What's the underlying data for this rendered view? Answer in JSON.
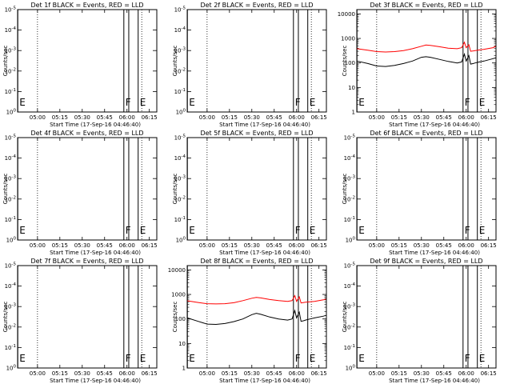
{
  "chart_data": [
    {
      "type": "line",
      "title": "Det 1f BLACK = Events, RED = LLD",
      "ylabel": "Counts/sec",
      "xlabel": "Start Time (17-Sep-16 04:46:40)",
      "x_ticks": [
        "05:00",
        "05:15",
        "05:30",
        "05:45",
        "06:00",
        "06:15"
      ],
      "y_ticks": [
        "10^0",
        "10^-1",
        "10^-2",
        "10^-3",
        "10^-4",
        "10^-5"
      ],
      "y_log": false,
      "markers": [
        "E",
        "F",
        "E"
      ],
      "series": []
    },
    {
      "type": "line",
      "title": "Det 2f BLACK = Events, RED = LLD",
      "ylabel": "Counts/sec",
      "xlabel": "Start Time (17-Sep-16 04:46:40)",
      "x_ticks": [
        "05:00",
        "05:15",
        "05:30",
        "05:45",
        "06:00",
        "06:15"
      ],
      "y_ticks": [
        "10^0",
        "10^-1",
        "10^-2",
        "10^-3",
        "10^-4",
        "10^-5"
      ],
      "y_log": false,
      "markers": [
        "E",
        "F",
        "E"
      ],
      "series": []
    },
    {
      "type": "line",
      "title": "Det 3f BLACK = Events, RED = LLD",
      "ylabel": "Counts/sec",
      "xlabel": "Start Time (17-Sep-16 04:46:40)",
      "x_ticks": [
        "05:00",
        "05:15",
        "05:30",
        "05:45",
        "06:00",
        "06:15"
      ],
      "y_ticks": [
        "1",
        "10",
        "100",
        "1000",
        "10000"
      ],
      "y_log": true,
      "ylim": [
        1,
        15000
      ],
      "markers": [
        "E",
        "F",
        "E"
      ],
      "series": [
        {
          "color": "#ff0000",
          "x": [
            4.78,
            4.9,
            5.0,
            5.1,
            5.2,
            5.3,
            5.4,
            5.5,
            5.55,
            5.6,
            5.7,
            5.8,
            5.9,
            5.95,
            5.98,
            6.0,
            6.03,
            6.05,
            6.08,
            6.1,
            6.15,
            6.2,
            6.3,
            6.33
          ],
          "y": [
            380,
            330,
            290,
            280,
            290,
            320,
            380,
            480,
            540,
            520,
            460,
            400,
            380,
            420,
            700,
            420,
            550,
            300,
            310,
            320,
            340,
            360,
            420,
            480
          ]
        },
        {
          "color": "#000000",
          "x": [
            4.78,
            4.9,
            5.0,
            5.1,
            5.2,
            5.3,
            5.4,
            5.5,
            5.55,
            5.6,
            5.7,
            5.8,
            5.9,
            5.95,
            5.98,
            6.0,
            6.03,
            6.05,
            6.08,
            6.1,
            6.15,
            6.2,
            6.3,
            6.33
          ],
          "y": [
            120,
            95,
            75,
            72,
            80,
            95,
            120,
            170,
            180,
            170,
            140,
            115,
            100,
            110,
            230,
            120,
            200,
            90,
            95,
            100,
            110,
            120,
            150,
            160
          ]
        }
      ]
    },
    {
      "type": "line",
      "title": "Det 4f BLACK = Events, RED = LLD",
      "ylabel": "Counts/sec",
      "xlabel": "Start Time (17-Sep-16 04:46:40)",
      "x_ticks": [
        "05:00",
        "05:15",
        "05:30",
        "05:45",
        "06:00",
        "06:15"
      ],
      "y_ticks": [
        "10^0",
        "10^-1",
        "10^-2",
        "10^-3",
        "10^-4",
        "10^-5"
      ],
      "y_log": false,
      "markers": [
        "E",
        "F",
        "E"
      ],
      "series": []
    },
    {
      "type": "line",
      "title": "Det 5f BLACK = Events, RED = LLD",
      "ylabel": "Counts/sec",
      "xlabel": "Start Time (17-Sep-16 04:46:40)",
      "x_ticks": [
        "05:00",
        "05:15",
        "05:30",
        "05:45",
        "06:00",
        "06:15"
      ],
      "y_ticks": [
        "10^0",
        "10^-1",
        "10^-2",
        "10^-3",
        "10^-4",
        "10^-5"
      ],
      "y_log": false,
      "markers": [
        "E",
        "F",
        "E"
      ],
      "series": []
    },
    {
      "type": "line",
      "title": "Det 6f BLACK = Events, RED = LLD",
      "ylabel": "Counts/sec",
      "xlabel": "Start Time (17-Sep-16 04:46:40)",
      "x_ticks": [
        "05:00",
        "05:15",
        "05:30",
        "05:45",
        "06:00",
        "06:15"
      ],
      "y_ticks": [
        "10^0",
        "10^-1",
        "10^-2",
        "10^-3",
        "10^-4",
        "10^-5"
      ],
      "y_log": false,
      "markers": [
        "E",
        "F",
        "E"
      ],
      "series": []
    },
    {
      "type": "line",
      "title": "Det 7f BLACK = Events, RED = LLD",
      "ylabel": "Counts/sec",
      "xlabel": "Start Time (17-Sep-16 04:46:40)",
      "x_ticks": [
        "05:00",
        "05:15",
        "05:30",
        "05:45",
        "06:00",
        "06:15"
      ],
      "y_ticks": [
        "10^0",
        "10^-1",
        "10^-2",
        "10^-3",
        "10^-4",
        "10^-5"
      ],
      "y_log": false,
      "markers": [
        "E",
        "F",
        "E"
      ],
      "series": []
    },
    {
      "type": "line",
      "title": "Det 8f BLACK = Events, RED = LLD",
      "ylabel": "Counts/sec",
      "xlabel": "Start Time (17-Sep-16 04:46:40)",
      "x_ticks": [
        "05:00",
        "05:15",
        "05:30",
        "05:45",
        "06:00",
        "06:15"
      ],
      "y_ticks": [
        "1",
        "10",
        "100",
        "1000",
        "10000"
      ],
      "y_log": true,
      "ylim": [
        1,
        15000
      ],
      "markers": [
        "E",
        "F",
        "E"
      ],
      "series": [
        {
          "color": "#ff0000",
          "x": [
            4.78,
            4.9,
            5.0,
            5.1,
            5.2,
            5.3,
            5.4,
            5.5,
            5.55,
            5.6,
            5.7,
            5.8,
            5.9,
            5.95,
            5.98,
            6.0,
            6.03,
            6.05,
            6.08,
            6.1,
            6.15,
            6.2,
            6.3,
            6.33
          ],
          "y": [
            550,
            470,
            420,
            410,
            420,
            460,
            560,
            700,
            760,
            720,
            620,
            560,
            520,
            560,
            900,
            520,
            800,
            450,
            470,
            480,
            500,
            520,
            600,
            650
          ]
        },
        {
          "color": "#000000",
          "x": [
            4.78,
            4.9,
            5.0,
            5.1,
            5.2,
            5.3,
            5.4,
            5.5,
            5.55,
            5.6,
            5.7,
            5.8,
            5.9,
            5.95,
            5.98,
            6.0,
            6.03,
            6.05,
            6.08,
            6.1,
            6.15,
            6.2,
            6.3,
            6.33
          ],
          "y": [
            110,
            80,
            62,
            60,
            65,
            78,
            100,
            150,
            170,
            155,
            120,
            100,
            90,
            100,
            220,
            110,
            190,
            80,
            85,
            90,
            100,
            110,
            130,
            140
          ]
        }
      ]
    },
    {
      "type": "line",
      "title": "Det 9f BLACK = Events, RED = LLD",
      "ylabel": "Counts/sec",
      "xlabel": "Start Time (17-Sep-16 04:46:40)",
      "x_ticks": [
        "05:00",
        "05:15",
        "05:30",
        "05:45",
        "06:00",
        "06:15"
      ],
      "y_ticks": [
        "10^0",
        "10^-1",
        "10^-2",
        "10^-3",
        "10^-4",
        "10^-5"
      ],
      "y_log": false,
      "markers": [
        "E",
        "F",
        "E"
      ],
      "series": []
    }
  ]
}
